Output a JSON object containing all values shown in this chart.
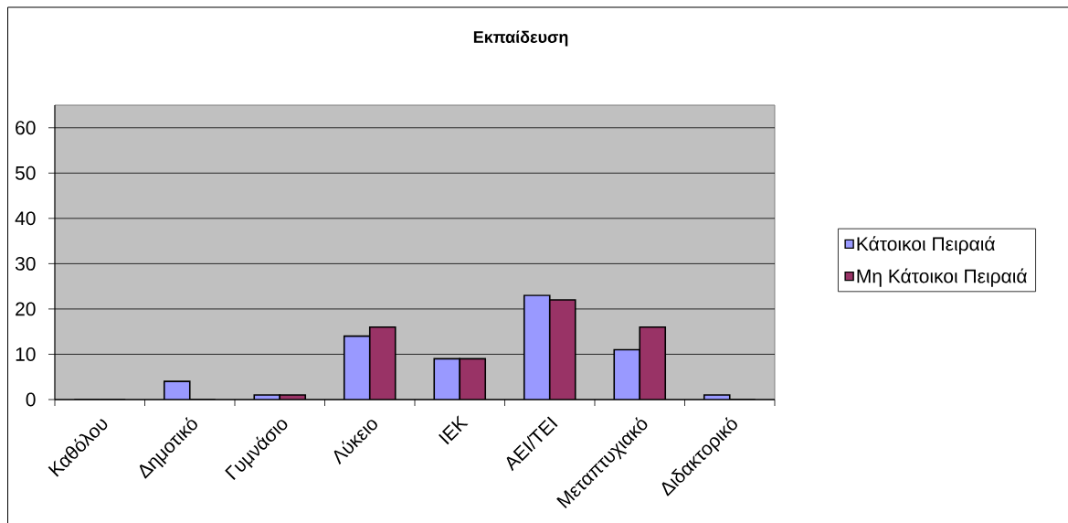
{
  "chart_data": {
    "type": "bar",
    "title": "Εκπαίδευση",
    "categories": [
      "Καθόλου",
      "Δημοτικό",
      "Γυμνάσιο",
      "Λύκειο",
      "ΙΕΚ",
      "ΑΕΙ/ΤΕΙ",
      "Μεταπτυχιακό",
      "Διδακτορικό"
    ],
    "series": [
      {
        "name": "Κάτοικοι Πειραιά",
        "color": "#9999ff",
        "values": [
          0,
          4,
          1,
          14,
          9,
          23,
          11,
          1
        ]
      },
      {
        "name": "Μη Κάτοικοι Πειραιά",
        "color": "#993366",
        "values": [
          0,
          0,
          1,
          16,
          9,
          22,
          16,
          0
        ]
      }
    ],
    "ylim": [
      0,
      65
    ],
    "yticks": [
      0,
      10,
      20,
      30,
      40,
      50,
      60
    ],
    "grid": "y",
    "legend": "right"
  }
}
